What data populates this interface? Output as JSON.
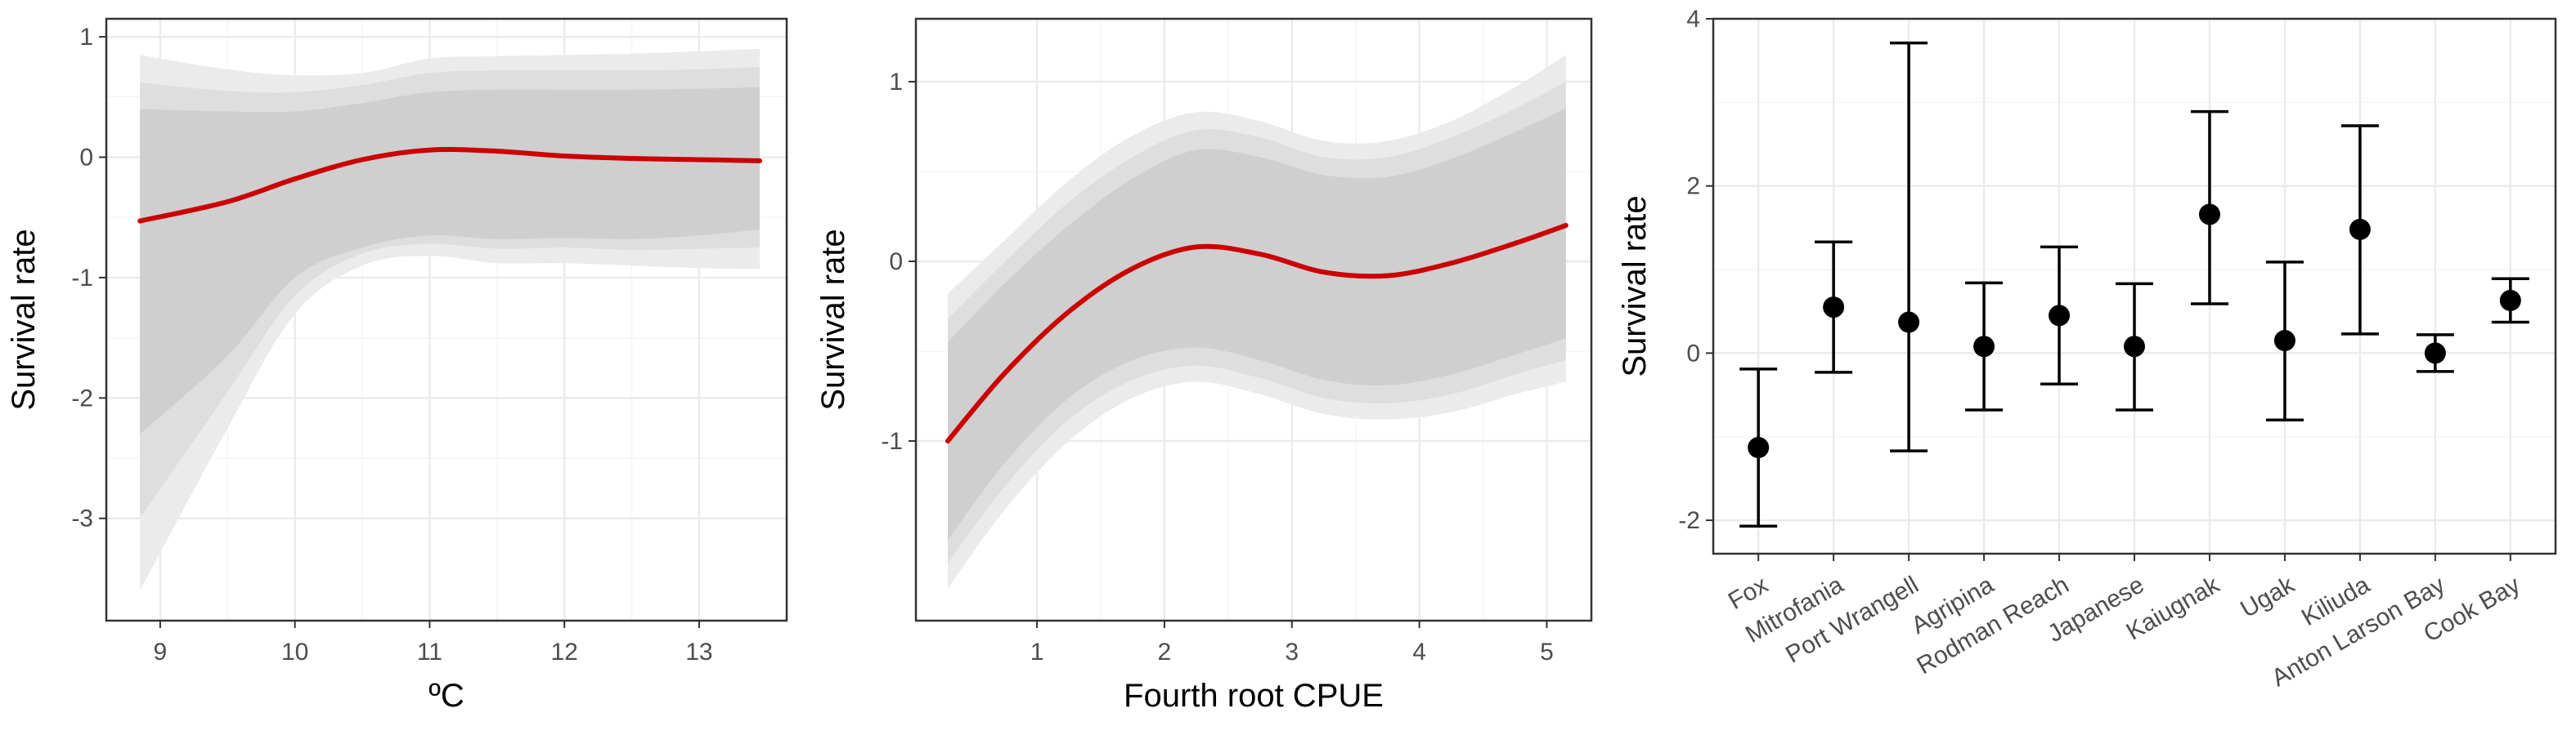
{
  "colors": {
    "band_outer": "#ebebeb",
    "band_mid": "#dedede",
    "band_inner": "#cfcfcf",
    "line": "#cc0000",
    "point": "#000000",
    "grid_major": "#ebebeb",
    "grid_minor": "#f5f5f5",
    "panel_border": "#333333"
  },
  "chart_data": [
    {
      "type": "line",
      "xlabel": "ºC",
      "ylabel": "Survival rate",
      "xlim": [
        8.6,
        13.65
      ],
      "ylim": [
        -3.85,
        1.15
      ],
      "x_ticks": [
        9,
        10,
        11,
        12,
        13
      ],
      "y_ticks": [
        1,
        0,
        -1,
        -2,
        -3
      ],
      "x_tick_labels": [
        "9",
        "10",
        "11",
        "12",
        "13"
      ],
      "y_tick_labels": [
        "1",
        "0",
        "-1",
        "-2",
        "-3"
      ],
      "x": [
        8.85,
        9.5,
        10.0,
        10.5,
        11.0,
        11.5,
        12.0,
        12.5,
        13.0,
        13.45
      ],
      "fit": [
        -0.53,
        -0.37,
        -0.18,
        -0.02,
        0.06,
        0.05,
        0.01,
        -0.01,
        -0.02,
        -0.03
      ],
      "band_inner": {
        "lower": [
          -2.3,
          -1.65,
          -1.0,
          -0.75,
          -0.65,
          -0.68,
          -0.67,
          -0.68,
          -0.65,
          -0.6
        ],
        "upper": [
          0.4,
          0.38,
          0.38,
          0.45,
          0.54,
          0.56,
          0.56,
          0.56,
          0.57,
          0.58
        ]
      },
      "band_mid": {
        "lower": [
          -3.0,
          -1.95,
          -1.15,
          -0.8,
          -0.72,
          -0.76,
          -0.75,
          -0.77,
          -0.76,
          -0.75
        ],
        "upper": [
          0.62,
          0.55,
          0.54,
          0.6,
          0.7,
          0.72,
          0.72,
          0.72,
          0.73,
          0.75
        ]
      },
      "band_outer": {
        "lower": [
          -3.6,
          -2.25,
          -1.3,
          -0.9,
          -0.82,
          -0.88,
          -0.88,
          -0.9,
          -0.92,
          -0.93
        ],
        "upper": [
          0.85,
          0.73,
          0.68,
          0.7,
          0.82,
          0.84,
          0.85,
          0.86,
          0.88,
          0.9
        ]
      }
    },
    {
      "type": "line",
      "xlabel": "Fourth root CPUE",
      "ylabel": "Survival rate",
      "xlim": [
        0.05,
        5.35
      ],
      "ylim": [
        -2.0,
        1.35
      ],
      "x_ticks": [
        1,
        2,
        3,
        4,
        5
      ],
      "y_ticks": [
        1,
        0,
        -1
      ],
      "x_tick_labels": [
        "1",
        "2",
        "3",
        "4",
        "5"
      ],
      "y_tick_labels": [
        "1",
        "0",
        "-1"
      ],
      "x": [
        0.3,
        0.75,
        1.25,
        1.75,
        2.25,
        2.75,
        3.25,
        3.75,
        4.25,
        4.75,
        5.15
      ],
      "fit": [
        -1.0,
        -0.62,
        -0.28,
        -0.04,
        0.08,
        0.04,
        -0.06,
        -0.08,
        -0.01,
        0.1,
        0.2
      ],
      "band_inner": {
        "lower": [
          -1.55,
          -1.12,
          -0.76,
          -0.55,
          -0.48,
          -0.55,
          -0.66,
          -0.69,
          -0.63,
          -0.52,
          -0.43
        ],
        "upper": [
          -0.45,
          -0.12,
          0.2,
          0.46,
          0.62,
          0.58,
          0.48,
          0.47,
          0.57,
          0.72,
          0.85
        ]
      },
      "band_mid": {
        "lower": [
          -1.68,
          -1.25,
          -0.88,
          -0.66,
          -0.58,
          -0.65,
          -0.76,
          -0.79,
          -0.74,
          -0.63,
          -0.55
        ],
        "upper": [
          -0.32,
          0.0,
          0.33,
          0.58,
          0.73,
          0.69,
          0.58,
          0.58,
          0.69,
          0.85,
          1.0
        ]
      },
      "band_outer": {
        "lower": [
          -1.82,
          -1.38,
          -1.0,
          -0.76,
          -0.67,
          -0.74,
          -0.85,
          -0.88,
          -0.84,
          -0.74,
          -0.67
        ],
        "upper": [
          -0.18,
          0.12,
          0.45,
          0.7,
          0.83,
          0.78,
          0.67,
          0.67,
          0.78,
          0.97,
          1.15
        ]
      }
    },
    {
      "type": "errorbar",
      "xlabel": "",
      "ylabel": "Survival rate",
      "ylim": [
        -2.4,
        4.0
      ],
      "y_ticks": [
        4,
        2,
        0,
        -2
      ],
      "y_tick_labels": [
        "4",
        "2",
        "0",
        "-2"
      ],
      "categories": [
        "Fox",
        "Mitrofania",
        "Port Wrangell",
        "Agripina",
        "Rodman Reach",
        "Japanese",
        "Kaiugnak",
        "Ugak",
        "Kiliuda",
        "Anton Larson Bay",
        "Cook Bay"
      ],
      "values": [
        -1.13,
        0.55,
        0.37,
        0.08,
        0.45,
        0.08,
        1.66,
        0.15,
        1.48,
        0.0,
        0.63
      ],
      "lower": [
        -2.07,
        -0.23,
        -1.17,
        -0.68,
        -0.37,
        -0.68,
        0.59,
        -0.8,
        0.23,
        -0.22,
        0.37
      ],
      "upper": [
        -0.19,
        1.33,
        3.71,
        0.84,
        1.27,
        0.83,
        2.89,
        1.09,
        2.72,
        0.22,
        0.89
      ]
    }
  ]
}
